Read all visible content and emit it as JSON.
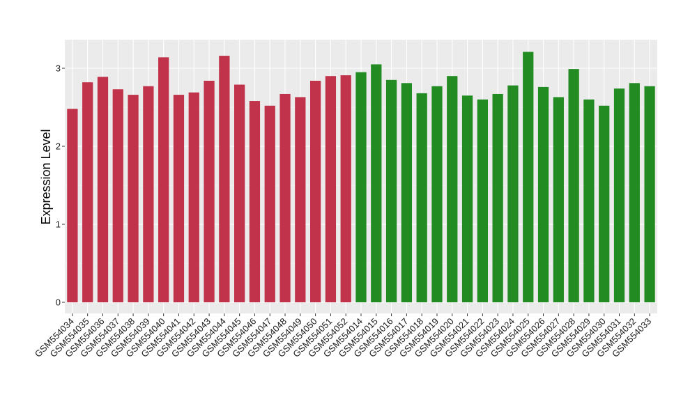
{
  "colors": {
    "panel_background": "#EBEBEB",
    "grid_major": "#FFFFFF",
    "grid_minor": "#F5F5F5",
    "group_a": "#C0334A",
    "group_b": "#228B22"
  },
  "chart_data": {
    "type": "bar",
    "title": "",
    "xlabel": "",
    "ylabel": "Expression Level",
    "ylim": [
      0,
      3.35
    ],
    "yticks": [
      0,
      1,
      2,
      3
    ],
    "grid": true,
    "legend": "none",
    "categories": [
      "GSM554034",
      "GSM554035",
      "GSM554036",
      "GSM554037",
      "GSM554038",
      "GSM554039",
      "GSM554040",
      "GSM554041",
      "GSM554042",
      "GSM554043",
      "GSM554044",
      "GSM554045",
      "GSM554046",
      "GSM554047",
      "GSM554048",
      "GSM554049",
      "GSM554050",
      "GSM554051",
      "GSM554052",
      "GSM554014",
      "GSM554015",
      "GSM554016",
      "GSM554017",
      "GSM554018",
      "GSM554019",
      "GSM554020",
      "GSM554021",
      "GSM554022",
      "GSM554023",
      "GSM554024",
      "GSM554025",
      "GSM554026",
      "GSM554027",
      "GSM554028",
      "GSM554029",
      "GSM554030",
      "GSM554031",
      "GSM554032",
      "GSM554033"
    ],
    "values": [
      2.48,
      2.82,
      2.89,
      2.73,
      2.66,
      2.77,
      3.14,
      2.66,
      2.69,
      2.84,
      3.16,
      2.79,
      2.58,
      2.52,
      2.67,
      2.63,
      2.84,
      2.9,
      2.91,
      2.95,
      3.05,
      2.85,
      2.81,
      2.68,
      2.77,
      2.9,
      2.65,
      2.6,
      2.67,
      2.78,
      3.21,
      2.76,
      2.63,
      2.99,
      2.6,
      2.52,
      2.74,
      2.81,
      2.77
    ],
    "groups": [
      "a",
      "a",
      "a",
      "a",
      "a",
      "a",
      "a",
      "a",
      "a",
      "a",
      "a",
      "a",
      "a",
      "a",
      "a",
      "a",
      "a",
      "a",
      "a",
      "b",
      "b",
      "b",
      "b",
      "b",
      "b",
      "b",
      "b",
      "b",
      "b",
      "b",
      "b",
      "b",
      "b",
      "b",
      "b",
      "b",
      "b",
      "b",
      "b"
    ]
  }
}
